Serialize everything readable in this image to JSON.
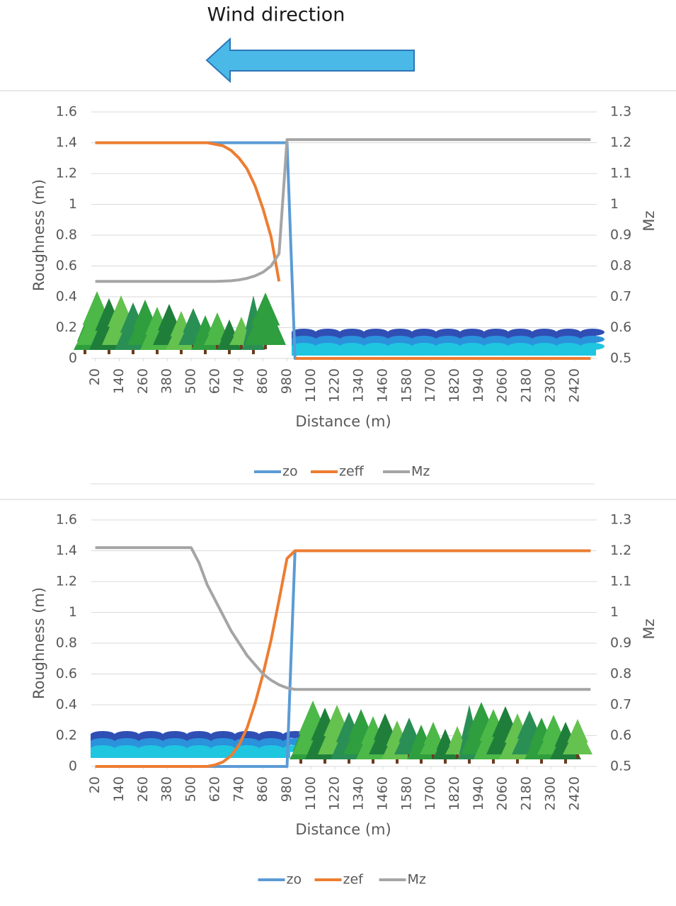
{
  "title": "Wind direction",
  "chart_data": [
    {
      "type": "line",
      "x": [
        20,
        60,
        100,
        140,
        180,
        220,
        260,
        300,
        340,
        380,
        420,
        460,
        500,
        540,
        580,
        620,
        660,
        700,
        740,
        780,
        820,
        860,
        900,
        940,
        980,
        1020,
        1060,
        1100,
        1140,
        1180,
        1220,
        1260,
        1300,
        1340,
        1380,
        1420,
        1460,
        1500,
        1540,
        1580,
        1620,
        1660,
        1700,
        1740,
        1780,
        1820,
        1860,
        1900,
        1940,
        1980,
        2020,
        2060,
        2100,
        2140,
        2180,
        2220,
        2260,
        2300,
        2340,
        2380,
        2420,
        2460,
        2500
      ],
      "xlim": [
        0,
        2520
      ],
      "xticks": [
        20,
        140,
        260,
        380,
        500,
        620,
        740,
        860,
        980,
        1100,
        1220,
        1340,
        1460,
        1580,
        1700,
        1820,
        1940,
        2060,
        2180,
        2300,
        2420
      ],
      "ylim": [
        0,
        1.6
      ],
      "yticks": [
        0,
        0.2,
        0.4,
        0.6,
        0.8,
        1,
        1.2,
        1.4,
        1.6
      ],
      "y2lim": [
        0.5,
        1.3
      ],
      "y2ticks": [
        0.5,
        0.6,
        0.7,
        0.8,
        0.9,
        1,
        1.1,
        1.2,
        1.3
      ],
      "x_label": "Distance (m)",
      "y_label": "Roughness (m)",
      "y2_label": "Mz",
      "grid": true,
      "legend": "bottom",
      "series": [
        {
          "name": "zo",
          "color": "#5b9bd5",
          "values": [
            1.4,
            1.4,
            1.4,
            1.4,
            1.4,
            1.4,
            1.4,
            1.4,
            1.4,
            1.4,
            1.4,
            1.4,
            1.4,
            1.4,
            1.4,
            1.4,
            1.4,
            1.4,
            1.4,
            1.4,
            1.4,
            1.4,
            1.4,
            1.4,
            1.4,
            0,
            0,
            0,
            0,
            0,
            0,
            0,
            0,
            0,
            0,
            0,
            0,
            0,
            0,
            0,
            0,
            0,
            0,
            0,
            0,
            0,
            0,
            0,
            0,
            0,
            0,
            0,
            0,
            0,
            0,
            0,
            0,
            0,
            0,
            0,
            0,
            0,
            0
          ]
        },
        {
          "name": "zeff",
          "color": "#ed7d31",
          "values": [
            1.4,
            1.4,
            1.4,
            1.4,
            1.4,
            1.4,
            1.4,
            1.4,
            1.4,
            1.4,
            1.4,
            1.4,
            1.4,
            1.4,
            1.4,
            1.39,
            1.38,
            1.35,
            1.3,
            1.23,
            1.12,
            0.97,
            0.79,
            0.5,
            null,
            0,
            0,
            0,
            0,
            0,
            0,
            0,
            0,
            0,
            0,
            0,
            0,
            0,
            0,
            0,
            0,
            0,
            0,
            0,
            0,
            0,
            0,
            0,
            0,
            0,
            0,
            0,
            0,
            0,
            0,
            0,
            0,
            0,
            0,
            0,
            0,
            0,
            0
          ]
        },
        {
          "name": "Mz",
          "color": "#a5a5a5",
          "axis": "y2",
          "values": [
            0.75,
            0.75,
            0.75,
            0.75,
            0.75,
            0.75,
            0.75,
            0.75,
            0.75,
            0.75,
            0.75,
            0.75,
            0.75,
            0.75,
            0.75,
            0.75,
            0.751,
            0.752,
            0.755,
            0.76,
            0.768,
            0.78,
            0.8,
            0.84,
            1.21,
            1.21,
            1.21,
            1.21,
            1.21,
            1.21,
            1.21,
            1.21,
            1.21,
            1.21,
            1.21,
            1.21,
            1.21,
            1.21,
            1.21,
            1.21,
            1.21,
            1.21,
            1.21,
            1.21,
            1.21,
            1.21,
            1.21,
            1.21,
            1.21,
            1.21,
            1.21,
            1.21,
            1.21,
            1.21,
            1.21,
            1.21,
            1.21,
            1.21,
            1.21,
            1.21,
            1.21,
            1.21,
            1.21
          ]
        }
      ]
    },
    {
      "type": "line",
      "x": [
        20,
        60,
        100,
        140,
        180,
        220,
        260,
        300,
        340,
        380,
        420,
        460,
        500,
        540,
        580,
        620,
        660,
        700,
        740,
        780,
        820,
        860,
        900,
        940,
        980,
        1020,
        1060,
        1100,
        1140,
        1180,
        1220,
        1260,
        1300,
        1340,
        1380,
        1420,
        1460,
        1500,
        1540,
        1580,
        1620,
        1660,
        1700,
        1740,
        1780,
        1820,
        1860,
        1900,
        1940,
        1980,
        2020,
        2060,
        2100,
        2140,
        2180,
        2220,
        2260,
        2300,
        2340,
        2380,
        2420,
        2460,
        2500
      ],
      "xlim": [
        0,
        2520
      ],
      "xticks": [
        20,
        140,
        260,
        380,
        500,
        620,
        740,
        860,
        980,
        1100,
        1220,
        1340,
        1460,
        1580,
        1700,
        1820,
        1940,
        2060,
        2180,
        2300,
        2420
      ],
      "ylim": [
        0,
        1.6
      ],
      "yticks": [
        0,
        0.2,
        0.4,
        0.6,
        0.8,
        1,
        1.2,
        1.4,
        1.6
      ],
      "y2lim": [
        0.5,
        1.3
      ],
      "y2ticks": [
        0.5,
        0.6,
        0.7,
        0.8,
        0.9,
        1,
        1.1,
        1.2,
        1.3
      ],
      "x_label": "Distance (m)",
      "y_label": "Roughness (m)",
      "y2_label": "Mz",
      "grid": true,
      "legend": "bottom",
      "series": [
        {
          "name": "zo",
          "color": "#5b9bd5",
          "values": [
            0,
            0,
            0,
            0,
            0,
            0,
            0,
            0,
            0,
            0,
            0,
            0,
            0,
            0,
            0,
            0,
            0,
            0,
            0,
            0,
            0,
            0,
            0,
            0,
            0,
            1.4,
            1.4,
            1.4,
            1.4,
            1.4,
            1.4,
            1.4,
            1.4,
            1.4,
            1.4,
            1.4,
            1.4,
            1.4,
            1.4,
            1.4,
            1.4,
            1.4,
            1.4,
            1.4,
            1.4,
            1.4,
            1.4,
            1.4,
            1.4,
            1.4,
            1.4,
            1.4,
            1.4,
            1.4,
            1.4,
            1.4,
            1.4,
            1.4,
            1.4,
            1.4,
            1.4,
            1.4,
            1.4
          ]
        },
        {
          "name": "zef",
          "color": "#ed7d31",
          "values": [
            0,
            0,
            0,
            0,
            0,
            0,
            0,
            0,
            0,
            0,
            0,
            0,
            0,
            0,
            0,
            0.01,
            0.03,
            0.07,
            0.14,
            0.25,
            0.41,
            0.6,
            0.82,
            1.08,
            1.35,
            1.4,
            1.4,
            1.4,
            1.4,
            1.4,
            1.4,
            1.4,
            1.4,
            1.4,
            1.4,
            1.4,
            1.4,
            1.4,
            1.4,
            1.4,
            1.4,
            1.4,
            1.4,
            1.4,
            1.4,
            1.4,
            1.4,
            1.4,
            1.4,
            1.4,
            1.4,
            1.4,
            1.4,
            1.4,
            1.4,
            1.4,
            1.4,
            1.4,
            1.4,
            1.4,
            1.4,
            1.4,
            1.4
          ]
        },
        {
          "name": "Mz",
          "color": "#a5a5a5",
          "axis": "y2",
          "values": [
            1.21,
            1.21,
            1.21,
            1.21,
            1.21,
            1.21,
            1.21,
            1.21,
            1.21,
            1.21,
            1.21,
            1.21,
            1.21,
            1.16,
            1.09,
            1.04,
            0.99,
            0.94,
            0.9,
            0.86,
            0.83,
            0.8,
            0.78,
            0.765,
            0.755,
            0.75,
            0.75,
            0.75,
            0.75,
            0.75,
            0.75,
            0.75,
            0.75,
            0.75,
            0.75,
            0.75,
            0.75,
            0.75,
            0.75,
            0.75,
            0.75,
            0.75,
            0.75,
            0.75,
            0.75,
            0.75,
            0.75,
            0.75,
            0.75,
            0.75,
            0.75,
            0.75,
            0.75,
            0.75,
            0.75,
            0.75,
            0.75,
            0.75,
            0.75,
            0.75,
            0.75,
            0.75,
            0.75
          ]
        }
      ]
    }
  ]
}
